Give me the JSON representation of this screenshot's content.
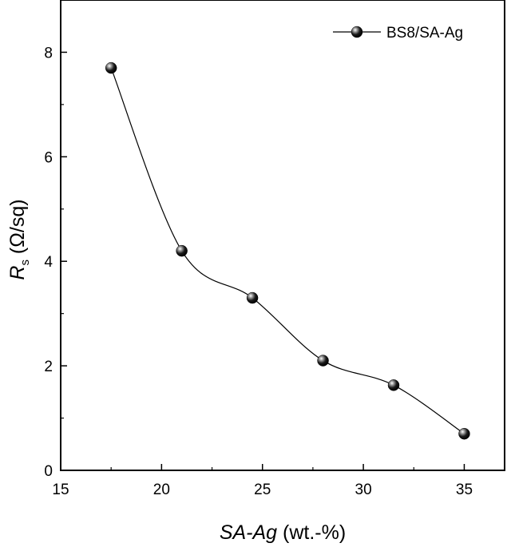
{
  "chart_data": {
    "type": "scatter",
    "title": "",
    "xlabel": {
      "italic": "SA-Ag",
      "normal": " (wt.-%)"
    },
    "ylabel": {
      "italic": "R",
      "sub": "s",
      "normal": " (Ω/sq)"
    },
    "xlim": [
      15,
      37
    ],
    "ylim": [
      0,
      9
    ],
    "xticks": [
      "15",
      "20",
      "25",
      "30",
      "35"
    ],
    "yticks": [
      "0",
      "2",
      "4",
      "6",
      "8"
    ],
    "grid": false,
    "legend_position": "top-right",
    "series": [
      {
        "name": "BS8/SA-Ag",
        "marker": "sphere",
        "line": "smooth",
        "x": [
          17.5,
          21,
          24.5,
          28,
          31.5,
          35
        ],
        "y": [
          7.7,
          4.2,
          3.3,
          2.1,
          1.63,
          0.7
        ]
      }
    ]
  },
  "colors": {
    "marker": "#000000",
    "line": "#000000",
    "axis": "#000000"
  }
}
